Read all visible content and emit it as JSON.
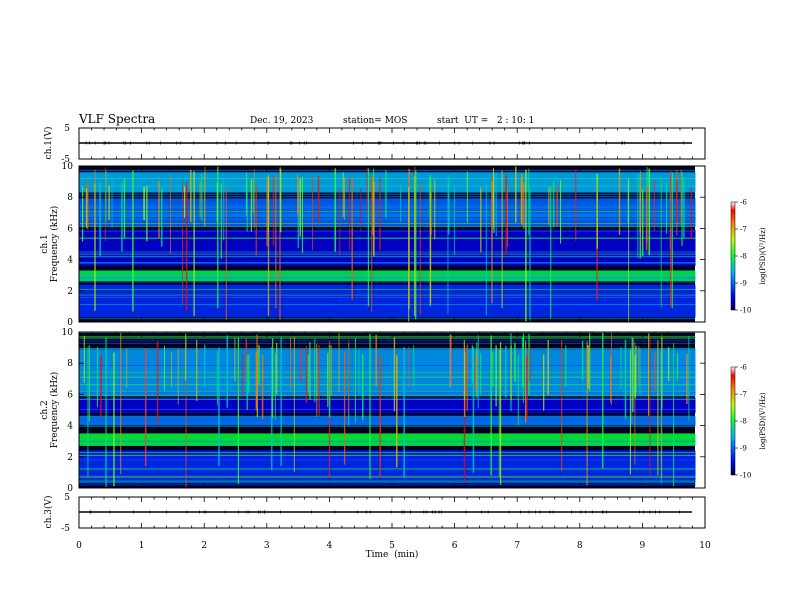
{
  "header": {
    "title": "VLF Spectra",
    "date": "Dec. 19, 2023",
    "station": "station= MOS",
    "start": "start  UT =   2 : 10: 1"
  },
  "chart_data": [
    {
      "type": "line",
      "panel": "ch1_waveform",
      "ylabel": "ch.1(V)",
      "ylim": [
        -5,
        5
      ],
      "y_ticks": [
        "5",
        "-5"
      ],
      "baseline": -1
    },
    {
      "type": "heatmap",
      "panel": "ch1_spectrogram",
      "ylabel_line1": "ch.1",
      "ylabel_line2": "Frequency (kHz)",
      "ylim": [
        0,
        10
      ],
      "y_ticks": [
        "0",
        "2",
        "4",
        "6",
        "8",
        "10"
      ],
      "data_end_min": 9.85,
      "colorbar": {
        "label": "log(PSD)(V²/Hz)",
        "range": [
          -10,
          -6
        ],
        "ticks": [
          "-6",
          "-7",
          "-8",
          "-9",
          "-10"
        ]
      },
      "bands_khz": [
        {
          "range": [
            2.6,
            3.3
          ],
          "level": -8.1
        },
        {
          "range": [
            8.3,
            9.6
          ],
          "level": -8.6
        },
        {
          "range": [
            6.1,
            7.9
          ],
          "level": -9.0
        },
        {
          "range": [
            0.3,
            2.4
          ],
          "level": -9.3
        },
        {
          "range": [
            3.6,
            5.9
          ],
          "level": -9.6
        }
      ]
    },
    {
      "type": "heatmap",
      "panel": "ch2_spectrogram",
      "ylabel_line1": "ch.2",
      "ylabel_line2": "Frequency (kHz)",
      "ylim": [
        0,
        10
      ],
      "y_ticks": [
        "0",
        "2",
        "4",
        "6",
        "8",
        "10"
      ],
      "data_end_min": 9.85,
      "colorbar": {
        "label": "log(PSD)(V²/Hz)",
        "range": [
          -10,
          -6
        ],
        "ticks": [
          "-6",
          "-7",
          "-8",
          "-9",
          "-10"
        ]
      },
      "bands_khz": [
        {
          "range": [
            2.7,
            3.5
          ],
          "level": -8.0
        },
        {
          "range": [
            5.9,
            8.9
          ],
          "level": -8.7
        },
        {
          "range": [
            4.0,
            4.6
          ],
          "level": -8.9
        },
        {
          "range": [
            0.3,
            2.4
          ],
          "level": -9.3
        },
        {
          "range": [
            4.8,
            5.8
          ],
          "level": -9.6
        }
      ]
    },
    {
      "type": "line",
      "panel": "ch3_waveform",
      "ylabel": "ch.3(V)",
      "ylim": [
        -5,
        5
      ],
      "y_ticks": [
        "5",
        "-5"
      ],
      "baseline": -1
    }
  ],
  "x_axis": {
    "label": "Time  (min)",
    "range": [
      0,
      10
    ],
    "ticks": [
      "0",
      "1",
      "2",
      "3",
      "4",
      "5",
      "6",
      "7",
      "8",
      "9",
      "10"
    ]
  }
}
